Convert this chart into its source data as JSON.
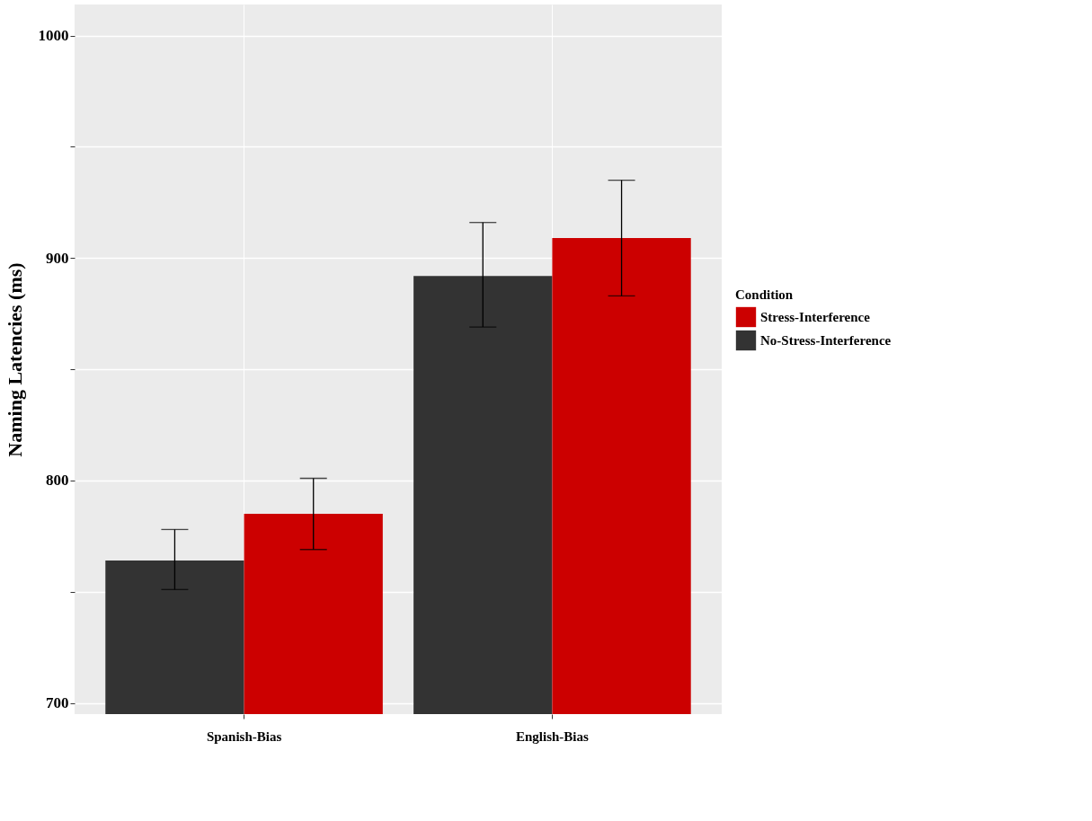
{
  "chart_data": {
    "type": "bar",
    "ylabel": "Naming Latencies (ms)",
    "legend_title": "Condition",
    "categories": [
      "Spanish-Bias",
      "English-Bias"
    ],
    "series": [
      {
        "name": "No-Stress-Interference",
        "color": "#333333",
        "values": [
          764,
          892
        ],
        "errors": [
          [
            751,
            778
          ],
          [
            869,
            916
          ]
        ]
      },
      {
        "name": "Stress-Interference",
        "color": "#cc0000",
        "values": [
          785,
          909
        ],
        "errors": [
          [
            769,
            801
          ],
          [
            883,
            935
          ]
        ]
      }
    ],
    "ylim": [
      695,
      1014
    ],
    "yticks": [
      700,
      {
        "value": 750,
        "label": null
      },
      800,
      {
        "value": 850,
        "label": null
      },
      900,
      {
        "value": 950,
        "label": null
      },
      1000
    ],
    "grid": true,
    "legend": "right"
  }
}
